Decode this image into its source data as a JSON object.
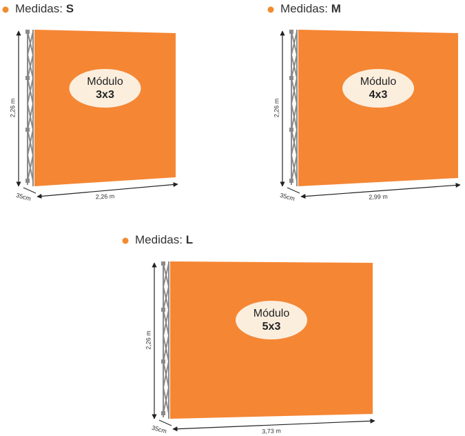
{
  "panels": [
    {
      "heading": "Medidas:",
      "size": "S",
      "module_label": "Módulo",
      "module_size": "3x3",
      "height": "2,26 m",
      "width": "2,26 m",
      "depth": "35cm"
    },
    {
      "heading": "Medidas:",
      "size": "M",
      "module_label": "Módulo",
      "module_size": "4x3",
      "height": "2,26 m",
      "width": "2,99 m",
      "depth": "35cm"
    },
    {
      "heading": "Medidas:",
      "size": "L",
      "module_label": "Módulo",
      "module_size": "5x3",
      "height": "2,26 m",
      "width": "3,73 m",
      "depth": "35cm"
    }
  ]
}
